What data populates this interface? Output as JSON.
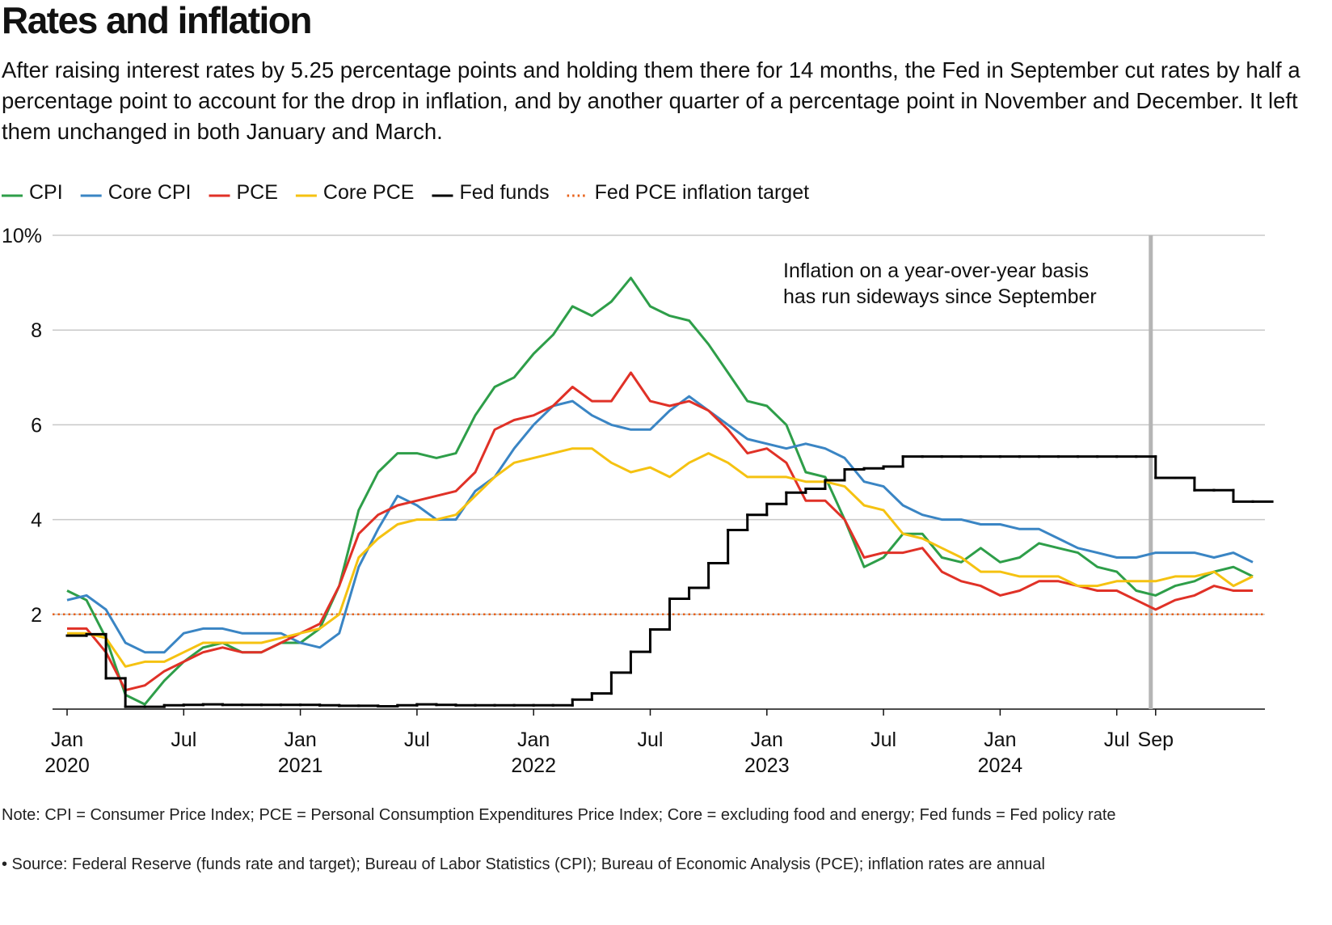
{
  "chart_data": {
    "type": "line",
    "title": "Rates and inflation",
    "subtitle": "After raising interest rates by 5.25 percentage points and holding them there for 14 months, the Fed in September cut rates by half a percentage point to account for the drop in inflation, and by another quarter of a percentage point in November and December. It left them unchanged in both January and March.",
    "x": [
      "2020-01",
      "2020-02",
      "2020-03",
      "2020-04",
      "2020-05",
      "2020-06",
      "2020-07",
      "2020-08",
      "2020-09",
      "2020-10",
      "2020-11",
      "2020-12",
      "2021-01",
      "2021-02",
      "2021-03",
      "2021-04",
      "2021-05",
      "2021-06",
      "2021-07",
      "2021-08",
      "2021-09",
      "2021-10",
      "2021-11",
      "2021-12",
      "2022-01",
      "2022-02",
      "2022-03",
      "2022-04",
      "2022-05",
      "2022-06",
      "2022-07",
      "2022-08",
      "2022-09",
      "2022-10",
      "2022-11",
      "2022-12",
      "2023-01",
      "2023-02",
      "2023-03",
      "2023-04",
      "2023-05",
      "2023-06",
      "2023-07",
      "2023-08",
      "2023-09",
      "2023-10",
      "2023-11",
      "2023-12",
      "2024-01",
      "2024-02",
      "2024-03",
      "2024-04",
      "2024-05",
      "2024-06",
      "2024-07",
      "2024-08",
      "2024-09",
      "2024-10",
      "2024-11",
      "2024-12",
      "2025-01",
      "2025-02"
    ],
    "series": [
      {
        "name": "CPI",
        "color": "#2e9e49",
        "values": [
          2.5,
          2.3,
          1.5,
          0.3,
          0.1,
          0.6,
          1.0,
          1.3,
          1.4,
          1.2,
          1.2,
          1.4,
          1.4,
          1.7,
          2.6,
          4.2,
          5.0,
          5.4,
          5.4,
          5.3,
          5.4,
          6.2,
          6.8,
          7.0,
          7.5,
          7.9,
          8.5,
          8.3,
          8.6,
          9.1,
          8.5,
          8.3,
          8.2,
          7.7,
          7.1,
          6.5,
          6.4,
          6.0,
          5.0,
          4.9,
          4.0,
          3.0,
          3.2,
          3.7,
          3.7,
          3.2,
          3.1,
          3.4,
          3.1,
          3.2,
          3.5,
          3.4,
          3.3,
          3.0,
          2.9,
          2.5,
          2.4,
          2.6,
          2.7,
          2.9,
          3.0,
          2.8
        ]
      },
      {
        "name": "Core CPI",
        "color": "#3a85c4",
        "values": [
          2.3,
          2.4,
          2.1,
          1.4,
          1.2,
          1.2,
          1.6,
          1.7,
          1.7,
          1.6,
          1.6,
          1.6,
          1.4,
          1.3,
          1.6,
          3.0,
          3.8,
          4.5,
          4.3,
          4.0,
          4.0,
          4.6,
          4.9,
          5.5,
          6.0,
          6.4,
          6.5,
          6.2,
          6.0,
          5.9,
          5.9,
          6.3,
          6.6,
          6.3,
          6.0,
          5.7,
          5.6,
          5.5,
          5.6,
          5.5,
          5.3,
          4.8,
          4.7,
          4.3,
          4.1,
          4.0,
          4.0,
          3.9,
          3.9,
          3.8,
          3.8,
          3.6,
          3.4,
          3.3,
          3.2,
          3.2,
          3.3,
          3.3,
          3.3,
          3.2,
          3.3,
          3.1
        ]
      },
      {
        "name": "PCE",
        "color": "#e03127",
        "values": [
          1.7,
          1.7,
          1.2,
          0.4,
          0.5,
          0.8,
          1.0,
          1.2,
          1.3,
          1.2,
          1.2,
          1.4,
          1.6,
          1.8,
          2.6,
          3.7,
          4.1,
          4.3,
          4.4,
          4.5,
          4.6,
          5.0,
          5.9,
          6.1,
          6.2,
          6.4,
          6.8,
          6.5,
          6.5,
          7.1,
          6.5,
          6.4,
          6.5,
          6.3,
          5.9,
          5.4,
          5.5,
          5.2,
          4.4,
          4.4,
          4.0,
          3.2,
          3.3,
          3.3,
          3.4,
          2.9,
          2.7,
          2.6,
          2.4,
          2.5,
          2.7,
          2.7,
          2.6,
          2.5,
          2.5,
          2.3,
          2.1,
          2.3,
          2.4,
          2.6,
          2.5,
          2.5
        ]
      },
      {
        "name": "Core PCE",
        "color": "#f5c211",
        "values": [
          1.6,
          1.6,
          1.5,
          0.9,
          1.0,
          1.0,
          1.2,
          1.4,
          1.4,
          1.4,
          1.4,
          1.5,
          1.6,
          1.7,
          2.0,
          3.2,
          3.6,
          3.9,
          4.0,
          4.0,
          4.1,
          4.5,
          4.9,
          5.2,
          5.3,
          5.4,
          5.5,
          5.5,
          5.2,
          5.0,
          5.1,
          4.9,
          5.2,
          5.4,
          5.2,
          4.9,
          4.9,
          4.9,
          4.8,
          4.8,
          4.7,
          4.3,
          4.2,
          3.7,
          3.6,
          3.4,
          3.2,
          2.9,
          2.9,
          2.8,
          2.8,
          2.8,
          2.6,
          2.6,
          2.7,
          2.7,
          2.7,
          2.8,
          2.8,
          2.9,
          2.6,
          2.8
        ]
      },
      {
        "name": "Fed funds",
        "color": "#000000",
        "step": true,
        "values": [
          1.55,
          1.58,
          0.65,
          0.05,
          0.05,
          0.08,
          0.09,
          0.1,
          0.09,
          0.09,
          0.09,
          0.09,
          0.09,
          0.08,
          0.07,
          0.07,
          0.06,
          0.08,
          0.1,
          0.09,
          0.08,
          0.08,
          0.08,
          0.08,
          0.08,
          0.08,
          0.2,
          0.33,
          0.77,
          1.21,
          1.68,
          2.33,
          2.56,
          3.08,
          3.78,
          4.1,
          4.33,
          4.57,
          4.65,
          4.83,
          5.06,
          5.08,
          5.12,
          5.33,
          5.33,
          5.33,
          5.33,
          5.33,
          5.33,
          5.33,
          5.33,
          5.33,
          5.33,
          5.33,
          5.33,
          5.33,
          4.88,
          4.88,
          4.62,
          4.62,
          4.38,
          4.38
        ]
      }
    ],
    "reference_line": {
      "name": "Fed PCE inflation target",
      "value": 2,
      "color": "#e8621a"
    },
    "marker_x": {
      "value": "2024-09",
      "color": "#b5b5b5"
    },
    "annotation": [
      "Inflation on a year-over-year basis",
      "has run sideways since September"
    ],
    "ylim": [
      0,
      10
    ],
    "yticks": [
      2,
      4,
      6,
      8,
      {
        "value": 10,
        "label": "10%"
      }
    ],
    "xticks": [
      {
        "value": "2020-01",
        "label": "Jan",
        "sublabel": "2020"
      },
      {
        "value": "2020-07",
        "label": "Jul"
      },
      {
        "value": "2021-01",
        "label": "Jan",
        "sublabel": "2021"
      },
      {
        "value": "2021-07",
        "label": "Jul"
      },
      {
        "value": "2022-01",
        "label": "Jan",
        "sublabel": "2022"
      },
      {
        "value": "2022-07",
        "label": "Jul"
      },
      {
        "value": "2023-01",
        "label": "Jan",
        "sublabel": "2023"
      },
      {
        "value": "2023-07",
        "label": "Jul"
      },
      {
        "value": "2024-01",
        "label": "Jan",
        "sublabel": "2024"
      },
      {
        "value": "2024-07",
        "label": "Jul"
      },
      {
        "value": "2024-09",
        "label": "Sep"
      }
    ],
    "grid": true,
    "note": "Note: CPI = Consumer Price Index; PCE = Personal Consumption Expenditures Price Index; Core = excluding food and energy; Fed funds = Fed policy rate",
    "source": "• Source: Federal Reserve (funds rate and target); Bureau of Labor Statistics (CPI); Bureau of Economic Analysis (PCE); inflation rates are annual"
  }
}
